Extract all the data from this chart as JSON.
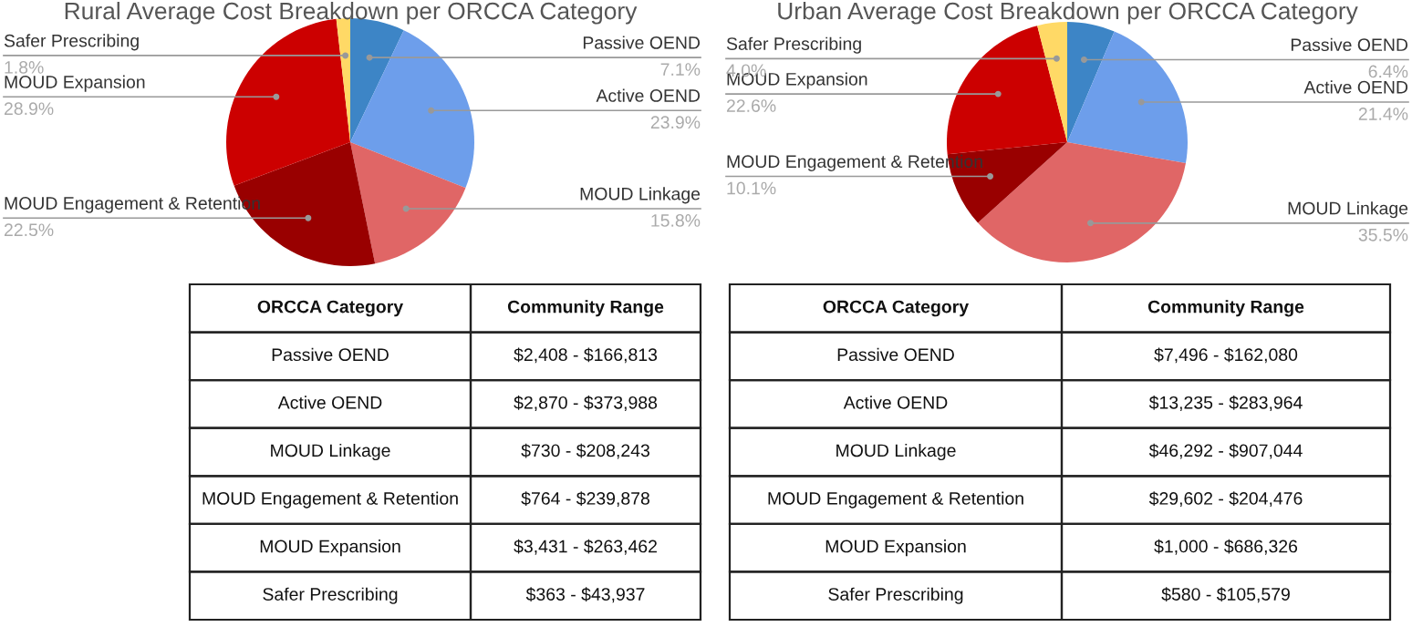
{
  "chart_data": [
    {
      "type": "pie",
      "title": "Rural Average Cost Breakdown per ORCCA Category",
      "categories": [
        "Passive OEND",
        "Active OEND",
        "MOUD Linkage",
        "MOUD Engagement & Retention",
        "MOUD Expansion",
        "Safer Prescribing"
      ],
      "values": [
        7.1,
        23.9,
        15.8,
        22.5,
        28.9,
        1.8
      ],
      "colors": [
        "#3d85c6",
        "#6d9eeb",
        "#e06666",
        "#990000",
        "#cc0000",
        "#ffd966"
      ],
      "value_labels": [
        "7.1%",
        "23.9%",
        "15.8%",
        "22.5%",
        "28.9%",
        "1.8%"
      ],
      "annotations": [
        "ORCCA Category",
        "Community Range",
        "Passive OEND",
        "$2,408 - $166,813",
        "Active OEND",
        "$2,870 - $373,988",
        "MOUD Linkage",
        "$730 - $208,243",
        "MOUD Engagement & Retention",
        "$764 - $239,878",
        "MOUD Expansion",
        "$3,431 - $263,462",
        "Safer Prescribing",
        "$363 - $43,937"
      ]
    },
    {
      "type": "pie",
      "title": "Urban Average Cost Breakdown per ORCCA Category",
      "categories": [
        "Passive OEND",
        "Active OEND",
        "MOUD Linkage",
        "MOUD Engagement & Retention",
        "MOUD Expansion",
        "Safer Prescribing"
      ],
      "values": [
        6.4,
        21.4,
        35.5,
        10.1,
        22.6,
        4.0
      ],
      "colors": [
        "#3d85c6",
        "#6d9eeb",
        "#e06666",
        "#990000",
        "#cc0000",
        "#ffd966"
      ],
      "value_labels": [
        "6.4%",
        "21.4%",
        "35.5%",
        "10.1%",
        "22.6%",
        "4.0%"
      ],
      "annotations": [
        "ORCCA Category",
        "Community Range",
        "Passive OEND",
        "$7,496 - $162,080",
        "Active OEND",
        "$13,235 - $283,964",
        "MOUD Linkage",
        "$46,292 - $907,044",
        "MOUD Engagement & Retention",
        "$29,602 - $204,476",
        "MOUD Expansion",
        "$1,000 - $686,326",
        "Safer Prescribing",
        "$580 - $105,579"
      ]
    }
  ]
}
